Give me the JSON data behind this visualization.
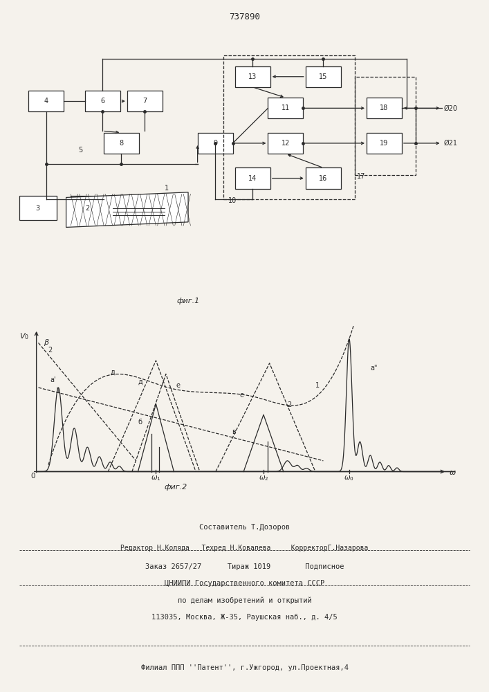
{
  "title": "737890",
  "fig1_caption": "фиг.1",
  "fig2_caption": "фиг.2",
  "background_color": "#f5f2ec",
  "line_color": "#2a2a2a",
  "text_color": "#2a2a2a",
  "footer_line1": "Составитель Т.Дозоров",
  "footer_line2": "Редактор Н.Коляда   Техред Н.Ковалева     КорректорГ.Назарова",
  "footer_line3": "Заказ 2657/27      Тираж 1019        Подписное",
  "footer_line4": "ЦНИИПИ Государственного комитета СССР",
  "footer_line5": "по делам изобретений и открытий",
  "footer_line6": "113035, Москва, Ж-35, Раушская наб., д. 4/5",
  "footer_line7": "Филиал ППП ''Патент'', г.Ужгород, ул.Проектная,4"
}
